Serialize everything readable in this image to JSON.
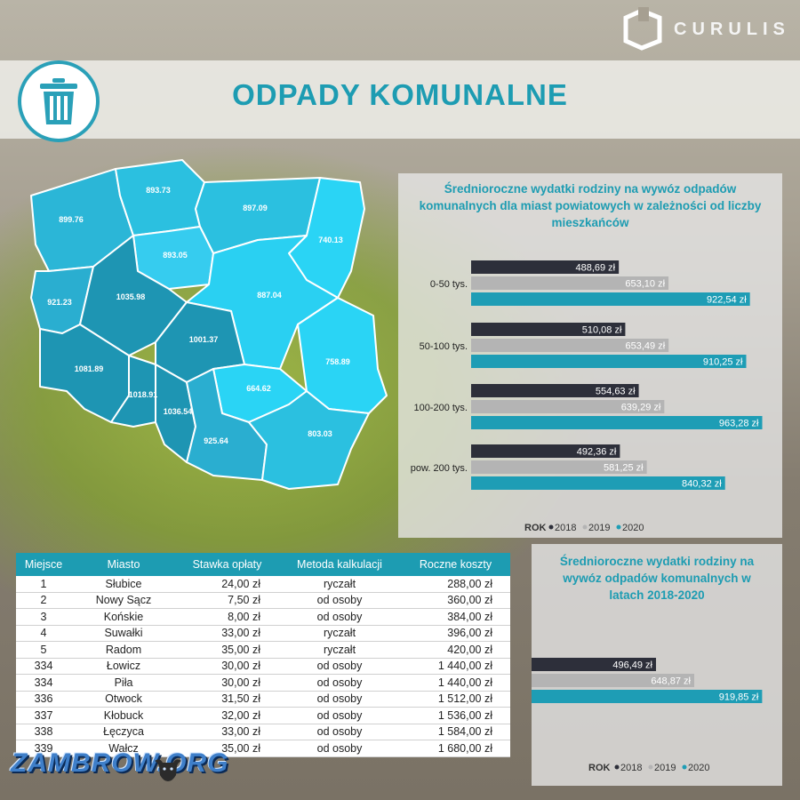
{
  "brand": {
    "name": "CURULIS"
  },
  "header": {
    "title": "ODPADY KOMUNALNE",
    "icon": "trash-can-icon"
  },
  "colors": {
    "y2018": "#2d2f3a",
    "y2019": "#b4b4b4",
    "y2020": "#1e9db5",
    "accent": "#1d9cb2"
  },
  "map": {
    "regions": [
      {
        "id": "zachodniopomorskie",
        "value": "899.76"
      },
      {
        "id": "pomorskie",
        "value": "893.73"
      },
      {
        "id": "warminsko-mazurskie",
        "value": "897.09"
      },
      {
        "id": "podlaskie",
        "value": "740.13"
      },
      {
        "id": "kujawsko-pomorskie",
        "value": "893.05"
      },
      {
        "id": "lubuskie",
        "value": "921.23"
      },
      {
        "id": "wielkopolskie",
        "value": "1035.98"
      },
      {
        "id": "mazowieckie",
        "value": "887.04"
      },
      {
        "id": "lodzkie",
        "value": "1001.37"
      },
      {
        "id": "dolnoslaskie",
        "value": "1081.89"
      },
      {
        "id": "lubelskie",
        "value": "758.89"
      },
      {
        "id": "opolskie",
        "value": "1018.91"
      },
      {
        "id": "slaskie",
        "value": "1036.54"
      },
      {
        "id": "swietokrzyskie",
        "value": "664.62"
      },
      {
        "id": "malopolskie",
        "value": "925.64"
      },
      {
        "id": "podkarpackie",
        "value": "803.03"
      }
    ]
  },
  "chart_data": [
    {
      "type": "bar",
      "orientation": "horizontal",
      "title": "Średnioroczne wydatki rodziny na wywóz odpadów komunalnych dla miast powiatowych w zależności od liczby mieszkańców",
      "categories": [
        "0-50 tys.",
        "50-100 tys.",
        "100-200 tys.",
        "pow. 200 tys."
      ],
      "series": [
        {
          "name": "2018",
          "values": [
            488.69,
            510.08,
            554.63,
            492.36
          ],
          "labels": [
            "488,69 zł",
            "510,08 zł",
            "554,63 zł",
            "492,36 zł"
          ]
        },
        {
          "name": "2019",
          "values": [
            653.1,
            653.49,
            639.29,
            581.25
          ],
          "labels": [
            "653,10 zł",
            "653,49 zł",
            "639,29 zł",
            "581,25 zł"
          ]
        },
        {
          "name": "2020",
          "values": [
            922.54,
            910.25,
            963.28,
            840.32
          ],
          "labels": [
            "922,54 zł",
            "910,25 zł",
            "963,28 zł",
            "840,32 zł"
          ]
        }
      ],
      "xlim": [
        0,
        1000
      ],
      "legend": {
        "title": "ROK",
        "items": [
          "2018",
          "2019",
          "2020"
        ],
        "placement": "bottom"
      }
    },
    {
      "type": "bar",
      "orientation": "horizontal",
      "title": "Średnioroczne wydatki rodziny na wywóz odpadów komunalnych w latach 2018-2020",
      "categories": [
        ""
      ],
      "series": [
        {
          "name": "2018",
          "values": [
            496.49
          ],
          "labels": [
            "496,49 zł"
          ]
        },
        {
          "name": "2019",
          "values": [
            648.87
          ],
          "labels": [
            "648,87 zł"
          ]
        },
        {
          "name": "2020",
          "values": [
            919.85
          ],
          "labels": [
            "919,85 zł"
          ]
        }
      ],
      "xlim": [
        0,
        1000
      ],
      "legend": {
        "title": "ROK",
        "items": [
          "2018",
          "2019",
          "2020"
        ],
        "placement": "bottom"
      }
    }
  ],
  "table": {
    "columns": [
      "Miejsce",
      "Miasto",
      "Stawka opłaty",
      "Metoda kalkulacji",
      "Roczne koszty"
    ],
    "rows": [
      [
        "1",
        "Słubice",
        "24,00 zł",
        "ryczałt",
        "288,00 zł"
      ],
      [
        "2",
        "Nowy Sącz",
        "7,50 zł",
        "od osoby",
        "360,00 zł"
      ],
      [
        "3",
        "Końskie",
        "8,00 zł",
        "od osoby",
        "384,00 zł"
      ],
      [
        "4",
        "Suwałki",
        "33,00 zł",
        "ryczałt",
        "396,00 zł"
      ],
      [
        "5",
        "Radom",
        "35,00 zł",
        "ryczałt",
        "420,00 zł"
      ],
      [
        "334",
        "Łowicz",
        "30,00 zł",
        "od osoby",
        "1 440,00 zł"
      ],
      [
        "334",
        "Piła",
        "30,00 zł",
        "od osoby",
        "1 440,00 zł"
      ],
      [
        "336",
        "Otwock",
        "31,50 zł",
        "od osoby",
        "1 512,00 zł"
      ],
      [
        "337",
        "Kłobuck",
        "32,00 zł",
        "od osoby",
        "1 536,00 zł"
      ],
      [
        "338",
        "Łęczyca",
        "33,00 zł",
        "od osoby",
        "1 584,00 zł"
      ],
      [
        "339",
        "Wałcz",
        "35,00 zł",
        "od osoby",
        "1 680,00 zł"
      ]
    ]
  },
  "watermark": {
    "text": "ZAMBROW.ORG"
  }
}
